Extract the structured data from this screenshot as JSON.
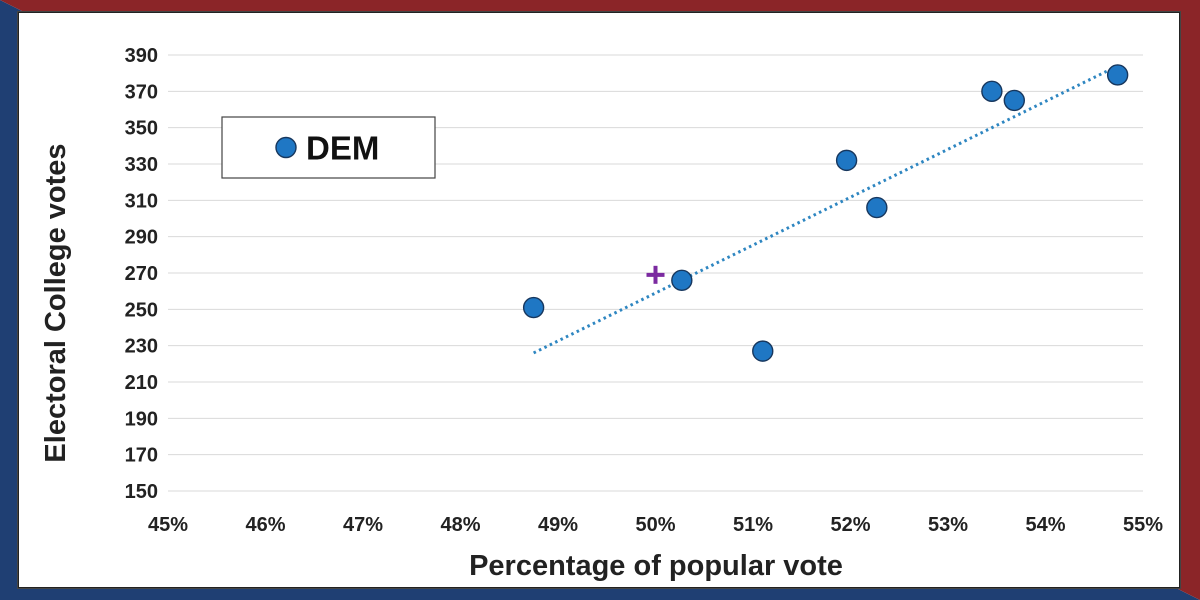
{
  "colors": {
    "frame_blue": "#1f3f73",
    "frame_red": "#8b2528",
    "marker_fill": "#1f77c4",
    "marker_stroke": "#17375e",
    "trendline": "#2e86c1",
    "plus_marker": "#7b2aa0",
    "grid": "#d9d9d9"
  },
  "chart_data": {
    "type": "scatter",
    "xlabel": "Percentage of popular vote",
    "ylabel": "Electoral College votes",
    "xlim": [
      45,
      55
    ],
    "ylim": [
      150,
      390
    ],
    "x_ticks": [
      "45%",
      "46%",
      "47%",
      "48%",
      "49%",
      "50%",
      "51%",
      "52%",
      "53%",
      "54%",
      "55%"
    ],
    "y_ticks": [
      "150",
      "170",
      "190",
      "210",
      "230",
      "250",
      "270",
      "290",
      "310",
      "330",
      "350",
      "370",
      "390"
    ],
    "grid": "horizontal",
    "legend": {
      "placement": "top-left",
      "entries": [
        "DEM"
      ]
    },
    "series": [
      {
        "name": "DEM",
        "points": [
          {
            "x": 48.75,
            "y": 251
          },
          {
            "x": 50.27,
            "y": 266
          },
          {
            "x": 51.1,
            "y": 227
          },
          {
            "x": 51.96,
            "y": 332
          },
          {
            "x": 52.27,
            "y": 306
          },
          {
            "x": 53.45,
            "y": 370
          },
          {
            "x": 53.68,
            "y": 365
          },
          {
            "x": 54.74,
            "y": 379
          }
        ]
      }
    ],
    "trendline": {
      "style": "dotted",
      "from": {
        "x": 48.75,
        "y": 226
      },
      "to": {
        "x": 54.74,
        "y": 384
      }
    },
    "reference_marker": {
      "symbol": "+",
      "x": 50.0,
      "y": 269
    }
  }
}
